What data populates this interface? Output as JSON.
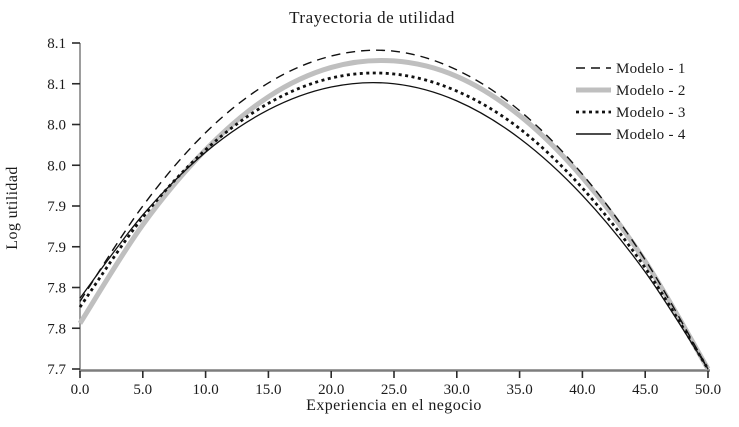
{
  "colors": {
    "black_curve": "#111111",
    "gray_curve": "#bfbfbf",
    "axis_line": "#7d7d7d",
    "tick_mark": "#2a2a2a",
    "text": "#1a1a1a",
    "background": "#ffffff"
  },
  "chart_data": {
    "type": "line",
    "title": "Trayectoria de utilidad",
    "xlabel": "Experiencia en el negocio",
    "ylabel": "Log utilidad",
    "xlim": [
      0,
      50
    ],
    "ylim": [
      7.7,
      8.1
    ],
    "grid": false,
    "legend_position": "upper right",
    "x_tick_values": [
      0,
      5,
      10,
      15,
      20,
      25,
      30,
      35,
      40,
      45,
      50
    ],
    "x_tick_labels": [
      "0.0",
      "5.0",
      "10.0",
      "15.0",
      "20.0",
      "25.0",
      "30.0",
      "35.0",
      "40.0",
      "45.0",
      "50.0"
    ],
    "y_tick_values": [
      8.1,
      8.05,
      8.0,
      7.95,
      7.9,
      7.85,
      7.8,
      7.75,
      7.7
    ],
    "y_tick_labels": [
      "8.1",
      "8.1",
      "8.0",
      "8.0",
      "7.9",
      "7.9",
      "7.8",
      "7.8",
      "7.7"
    ],
    "x": [
      0,
      5,
      10,
      15,
      20,
      25,
      30,
      35,
      40,
      45,
      50
    ],
    "series": [
      {
        "name": "Modelo - 1",
        "style": "dashed",
        "color": "#111111",
        "width": 1.4,
        "values": [
          7.783,
          7.9,
          7.99,
          8.051,
          8.084,
          8.09,
          8.067,
          8.017,
          7.939,
          7.834,
          7.7
        ]
      },
      {
        "name": "Modelo - 2",
        "style": "solid-thick",
        "color": "#bfbfbf",
        "width": 5,
        "values": [
          7.756,
          7.877,
          7.969,
          8.034,
          8.07,
          8.078,
          8.059,
          8.011,
          7.935,
          7.832,
          7.7
        ]
      },
      {
        "name": "Modelo - 3",
        "style": "dotted-bold",
        "color": "#111111",
        "width": 2.8,
        "values": [
          7.776,
          7.886,
          7.969,
          8.026,
          8.057,
          8.062,
          8.041,
          7.995,
          7.922,
          7.824,
          7.7
        ]
      },
      {
        "name": "Modelo - 4",
        "style": "solid",
        "color": "#111111",
        "width": 1.3,
        "values": [
          7.787,
          7.889,
          7.966,
          8.018,
          8.046,
          8.05,
          8.029,
          7.983,
          7.913,
          7.819,
          7.7
        ]
      }
    ]
  }
}
